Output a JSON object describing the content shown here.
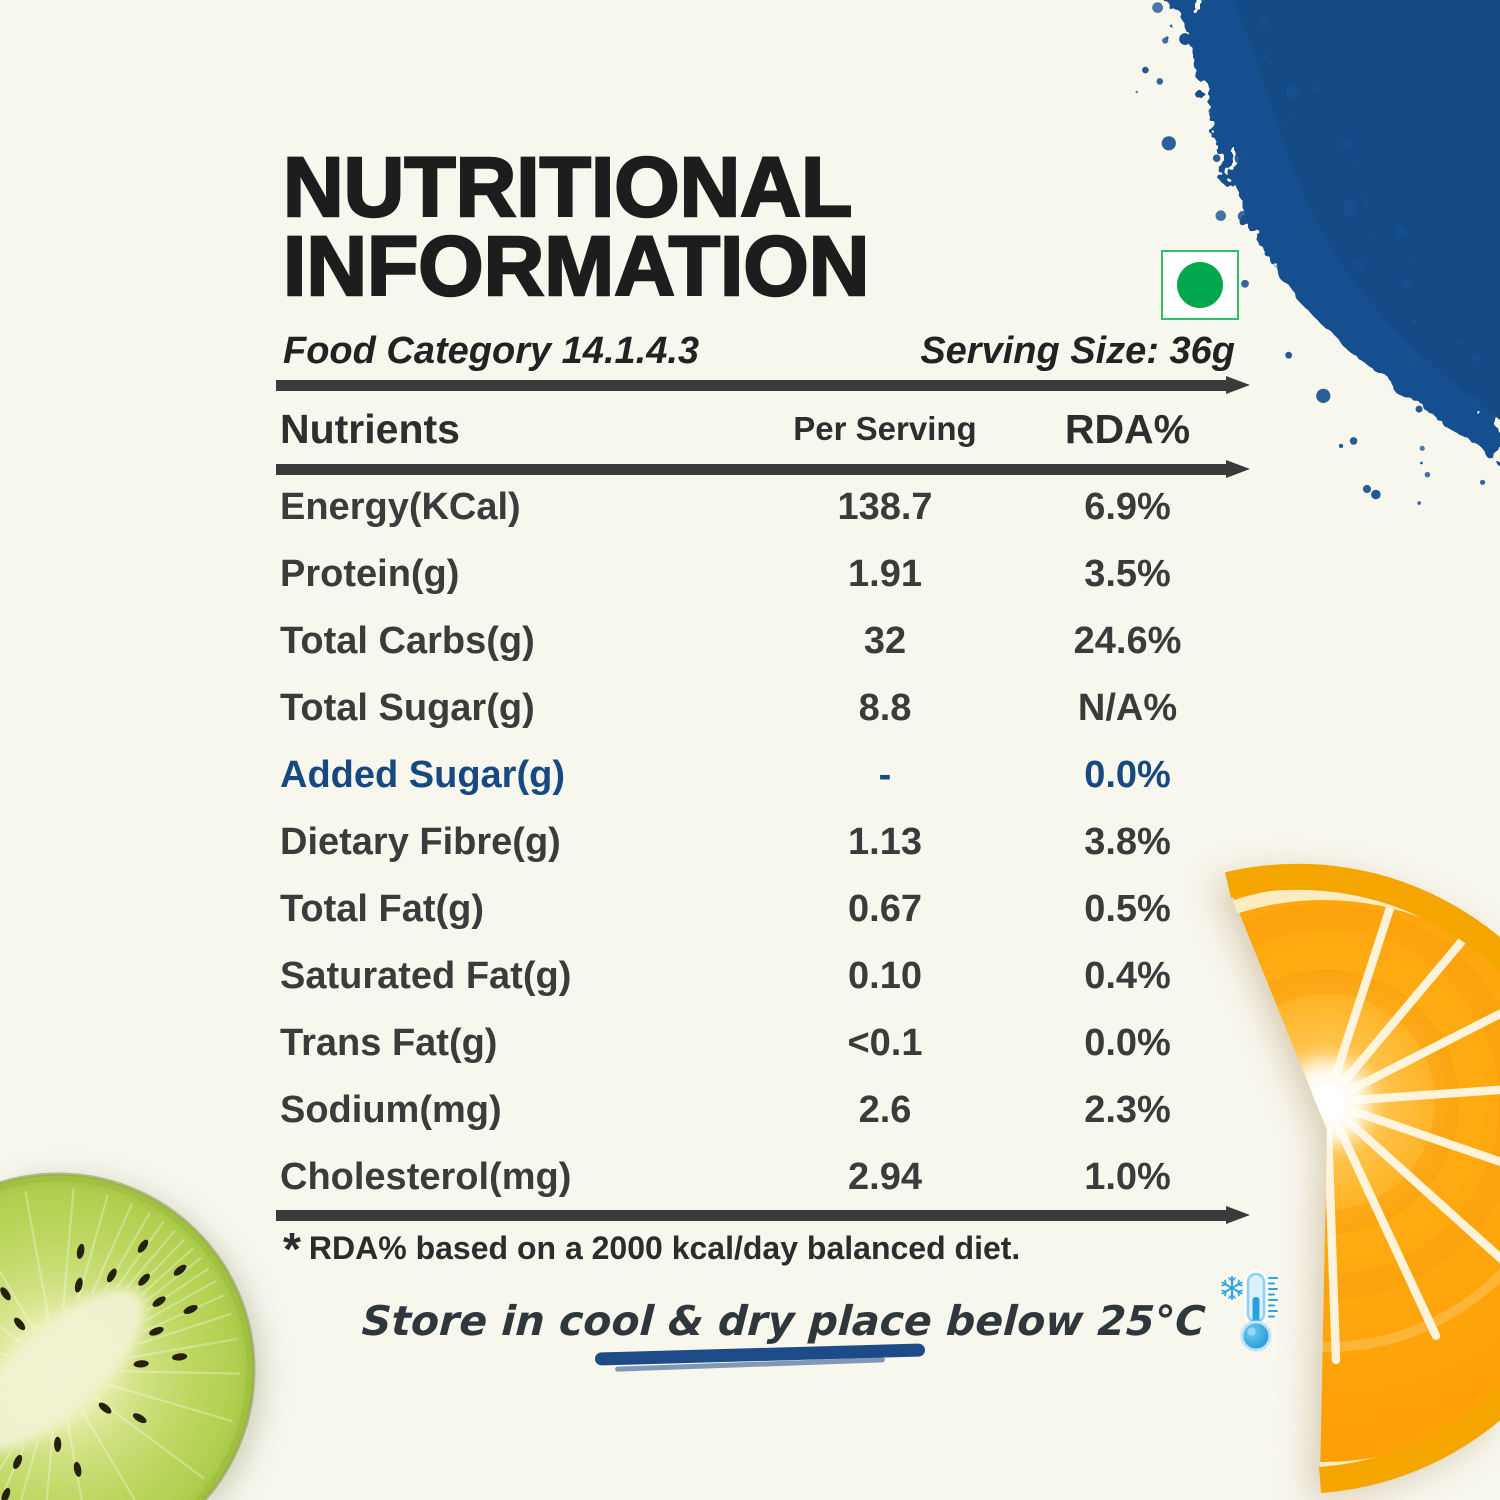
{
  "header": {
    "title_line1": "NUTRITIONAL",
    "title_line2": "INFORMATION",
    "food_category": "Food Category 14.1.4.3",
    "serving_size": "Serving Size: 36g"
  },
  "veg_mark": {
    "meaning": "vegetarian",
    "color": "#00a74f"
  },
  "table": {
    "columns": {
      "nutrient": "Nutrients",
      "per_serving": "Per Serving",
      "rda": "RDA%"
    },
    "rows": [
      {
        "nutrient": "Energy(KCal)",
        "per_serving": "138.7",
        "rda": "6.9%"
      },
      {
        "nutrient": "Protein(g)",
        "per_serving": "1.91",
        "rda": "3.5%"
      },
      {
        "nutrient": "Total Carbs(g)",
        "per_serving": "32",
        "rda": "24.6%"
      },
      {
        "nutrient": "Total Sugar(g)",
        "per_serving": "8.8",
        "rda": "N/A%"
      },
      {
        "nutrient": "Added Sugar(g)",
        "per_serving": "-",
        "rda": "0.0%"
      },
      {
        "nutrient": "Dietary Fibre(g)",
        "per_serving": "1.13",
        "rda": "3.8%"
      },
      {
        "nutrient": "Total Fat(g)",
        "per_serving": "0.67",
        "rda": "0.5%"
      },
      {
        "nutrient": "Saturated Fat(g)",
        "per_serving": "0.10",
        "rda": "0.4%"
      },
      {
        "nutrient": "Trans Fat(g)",
        "per_serving": "<0.1",
        "rda": "0.0%"
      },
      {
        "nutrient": "Sodium(mg)",
        "per_serving": "2.6",
        "rda": "2.3%"
      },
      {
        "nutrient": "Cholesterol(mg)",
        "per_serving": "2.94",
        "rda": "1.0%"
      }
    ],
    "footnote_star": "*",
    "footnote": "RDA% based on a 2000 kcal/day balanced diet."
  },
  "storage": {
    "note": "Store in cool & dry place below 25°C"
  },
  "colors": {
    "background": "#f8f7ee",
    "title": "#1f1c1d",
    "table_text": "#3b3b3b",
    "accent_blue": "#16497f",
    "veg_green": "#00a74f",
    "powder_blue": "#17508f",
    "underline_blue": "#1d4b88",
    "thermometer_blue": "#2ea8e0"
  }
}
